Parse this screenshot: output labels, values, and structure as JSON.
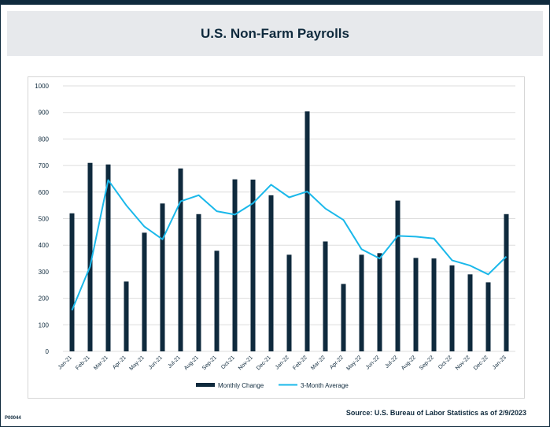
{
  "page": {
    "title": "U.S. Non-Farm Payrolls",
    "source": "Source: U.S. Bureau of Labor Statistics as of 2/9/2023",
    "code": "P00044"
  },
  "colors": {
    "bar": "#0f2a3d",
    "line": "#1ab8ea",
    "grid": "#dddddd",
    "text": "#0f2a3d"
  },
  "chart_data": {
    "type": "bar",
    "title": "",
    "xlabel": "",
    "ylabel": "",
    "ylim": [
      0,
      1000
    ],
    "yticks": [
      0,
      100,
      200,
      300,
      400,
      500,
      600,
      700,
      800,
      900,
      1000
    ],
    "grid": true,
    "legend_position": "bottom",
    "categories": [
      "Jan-21",
      "Feb-21",
      "Mar-21",
      "Apr-21",
      "May-21",
      "Jun-21",
      "Jul-21",
      "Aug-21",
      "Sep-21",
      "Oct-21",
      "Nov-21",
      "Dec-21",
      "Jan-22",
      "Feb-22",
      "Mar-22",
      "Apr-22",
      "May-22",
      "Jun-22",
      "Jul-22",
      "Aug-22",
      "Sep-22",
      "Oct-22",
      "Nov-22",
      "Dec-22",
      "Jan-23"
    ],
    "series": [
      {
        "name": "Monthly Change",
        "kind": "bar",
        "values": [
          520,
          710,
          704,
          263,
          447,
          557,
          689,
          517,
          379,
          648,
          647,
          588,
          364,
          904,
          414,
          254,
          364,
          370,
          568,
          352,
          350,
          324,
          290,
          260,
          517
        ]
      },
      {
        "name": "3-Month Average",
        "kind": "line",
        "values": [
          155,
          320,
          645,
          550,
          470,
          422,
          565,
          588,
          528,
          515,
          558,
          628,
          580,
          602,
          538,
          495,
          385,
          350,
          435,
          432,
          425,
          343,
          323,
          290,
          357
        ]
      }
    ]
  }
}
